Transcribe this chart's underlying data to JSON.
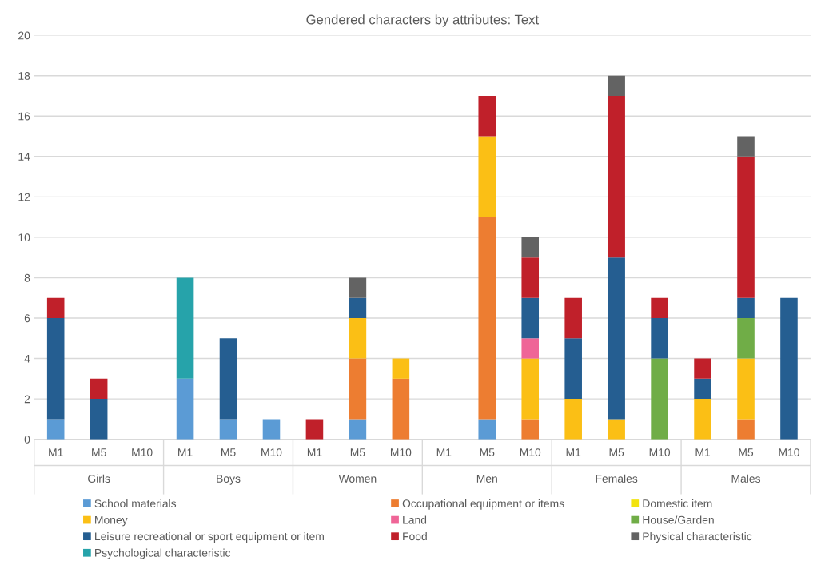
{
  "chart_data": {
    "type": "bar",
    "stacked": true,
    "title": "Gendered characters by attributes: Text",
    "categories": [
      "M1",
      "M5",
      "M10",
      "M1",
      "M5",
      "M10",
      "M1",
      "M5",
      "M10",
      "M1",
      "M5",
      "M10",
      "M1",
      "M5",
      "M10",
      "M1",
      "M5",
      "M10"
    ],
    "annotations": [
      "Girls",
      "Boys",
      "Women",
      "Men",
      "Females",
      "Males"
    ],
    "series": [
      {
        "name": "School materials",
        "color": "#5b9bd5",
        "values": [
          1,
          0,
          0,
          3,
          1,
          1,
          0,
          1,
          0,
          0,
          1,
          0,
          0,
          0,
          0,
          0,
          0,
          0
        ]
      },
      {
        "name": "Occupational equipment or items",
        "color": "#ed7d31",
        "values": [
          0,
          0,
          0,
          0,
          0,
          0,
          0,
          3,
          3,
          0,
          10,
          1,
          0,
          0,
          0,
          0,
          1,
          0
        ]
      },
      {
        "name": "Domestic item",
        "color": "#f2e30f",
        "values": [
          0,
          0,
          0,
          0,
          0,
          0,
          0,
          0,
          0,
          0,
          0,
          0,
          0,
          0,
          0,
          0,
          0,
          0
        ]
      },
      {
        "name": "Money",
        "color": "#fbbf15",
        "values": [
          0,
          0,
          0,
          0,
          0,
          0,
          0,
          2,
          1,
          0,
          4,
          3,
          2,
          1,
          0,
          2,
          3,
          0
        ]
      },
      {
        "name": "Land",
        "color": "#ef6597",
        "values": [
          0,
          0,
          0,
          0,
          0,
          0,
          0,
          0,
          0,
          0,
          0,
          1,
          0,
          0,
          0,
          0,
          0,
          0
        ]
      },
      {
        "name": "House/Garden",
        "color": "#70ad47",
        "values": [
          0,
          0,
          0,
          0,
          0,
          0,
          0,
          0,
          0,
          0,
          0,
          0,
          0,
          0,
          4,
          0,
          2,
          0
        ]
      },
      {
        "name": "Leisure recreational or sport equipment or item",
        "color": "#255e91",
        "values": [
          5,
          2,
          0,
          0,
          4,
          0,
          0,
          1,
          0,
          0,
          0,
          2,
          3,
          8,
          2,
          1,
          1,
          7
        ]
      },
      {
        "name": "Food",
        "color": "#c0202a",
        "values": [
          1,
          1,
          0,
          0,
          0,
          0,
          1,
          0,
          0,
          0,
          2,
          2,
          2,
          8,
          1,
          1,
          7,
          0
        ]
      },
      {
        "name": "Physical characteristic",
        "color": "#636363",
        "values": [
          0,
          0,
          0,
          0,
          0,
          0,
          0,
          1,
          0,
          0,
          0,
          1,
          0,
          1,
          0,
          0,
          1,
          0
        ]
      },
      {
        "name": "Psychological characteristic",
        "color": "#26a3aa",
        "values": [
          0,
          0,
          0,
          5,
          0,
          0,
          0,
          0,
          0,
          0,
          0,
          0,
          0,
          0,
          0,
          0,
          0,
          0
        ]
      }
    ],
    "ylim": [
      0,
      20
    ],
    "yticks": [
      0,
      2,
      4,
      6,
      8,
      10,
      12,
      14,
      16,
      18,
      20
    ],
    "grid": "y",
    "legend": "bottom"
  }
}
